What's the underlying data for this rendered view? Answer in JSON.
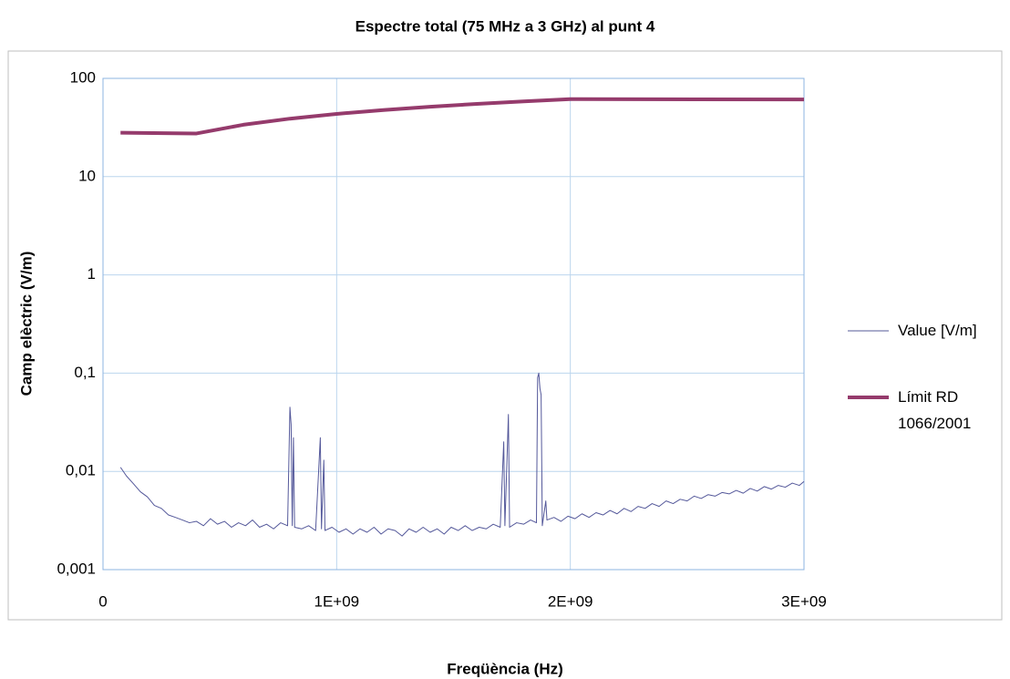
{
  "chart_data": {
    "type": "line",
    "title": "Espectre total (75 MHz a 3 GHz) al punt 4",
    "x_label": "Freqüència (Hz)",
    "y_label": "Camp elèctric (V/m)",
    "ylog": true,
    "grid": true,
    "legend": "right",
    "xlim": [
      0,
      3000000000
    ],
    "xticks": [
      0,
      {
        "value": 1000000000,
        "label": "1E+09"
      },
      {
        "value": 2000000000,
        "label": "2E+09"
      },
      {
        "value": 3000000000,
        "label": "3E+09"
      }
    ],
    "ylim": [
      0.001,
      100
    ],
    "yticks": [
      {
        "value": 0.001,
        "label": "0,001"
      },
      {
        "value": 0.01,
        "label": "0,01"
      },
      {
        "value": 0.1,
        "label": "0,1"
      },
      1,
      10,
      100
    ],
    "series": [
      {
        "name": "Value [V/m]",
        "color": "#54589a",
        "x": [
          75000000,
          100000000,
          130000000,
          160000000,
          190000000,
          220000000,
          250000000,
          280000000,
          310000000,
          340000000,
          370000000,
          400000000,
          430000000,
          460000000,
          490000000,
          520000000,
          550000000,
          580000000,
          610000000,
          640000000,
          670000000,
          700000000,
          730000000,
          760000000,
          790000000,
          800000000,
          805000000,
          810000000,
          815000000,
          820000000,
          850000000,
          880000000,
          910000000,
          930000000,
          935000000,
          945000000,
          950000000,
          980000000,
          1010000000,
          1040000000,
          1070000000,
          1100000000,
          1130000000,
          1160000000,
          1190000000,
          1220000000,
          1250000000,
          1280000000,
          1310000000,
          1340000000,
          1370000000,
          1400000000,
          1430000000,
          1460000000,
          1490000000,
          1520000000,
          1550000000,
          1580000000,
          1610000000,
          1640000000,
          1670000000,
          1700000000,
          1715000000,
          1720000000,
          1735000000,
          1740000000,
          1770000000,
          1800000000,
          1830000000,
          1855000000,
          1860000000,
          1865000000,
          1870000000,
          1875000000,
          1880000000,
          1895000000,
          1900000000,
          1930000000,
          1960000000,
          1990000000,
          2020000000,
          2050000000,
          2080000000,
          2110000000,
          2140000000,
          2170000000,
          2200000000,
          2230000000,
          2260000000,
          2290000000,
          2320000000,
          2350000000,
          2380000000,
          2410000000,
          2440000000,
          2470000000,
          2500000000,
          2530000000,
          2560000000,
          2590000000,
          2620000000,
          2650000000,
          2680000000,
          2710000000,
          2740000000,
          2770000000,
          2800000000,
          2830000000,
          2860000000,
          2890000000,
          2920000000,
          2950000000,
          2980000000,
          3000000000
        ],
        "values": [
          0.011,
          0.009,
          0.0075,
          0.0062,
          0.0055,
          0.0045,
          0.0042,
          0.0036,
          0.0034,
          0.0032,
          0.003,
          0.0031,
          0.0028,
          0.0033,
          0.0029,
          0.0031,
          0.0027,
          0.003,
          0.0028,
          0.0032,
          0.0027,
          0.0029,
          0.0026,
          0.003,
          0.0028,
          0.045,
          0.03,
          0.0028,
          0.022,
          0.0027,
          0.0026,
          0.0028,
          0.0025,
          0.022,
          0.0026,
          0.013,
          0.0025,
          0.0027,
          0.0024,
          0.0026,
          0.0023,
          0.0026,
          0.0024,
          0.0027,
          0.0023,
          0.0026,
          0.0025,
          0.0022,
          0.0026,
          0.0024,
          0.0027,
          0.0024,
          0.0026,
          0.0023,
          0.0027,
          0.0025,
          0.0028,
          0.0025,
          0.0027,
          0.0026,
          0.0029,
          0.0027,
          0.02,
          0.0028,
          0.038,
          0.0027,
          0.003,
          0.0029,
          0.0032,
          0.003,
          0.09,
          0.1,
          0.07,
          0.06,
          0.0028,
          0.005,
          0.0032,
          0.0034,
          0.0031,
          0.0035,
          0.0033,
          0.0037,
          0.0034,
          0.0038,
          0.0036,
          0.004,
          0.0037,
          0.0042,
          0.0039,
          0.0044,
          0.0042,
          0.0047,
          0.0044,
          0.005,
          0.0047,
          0.0052,
          0.005,
          0.0056,
          0.0053,
          0.0058,
          0.0056,
          0.0061,
          0.0059,
          0.0064,
          0.006,
          0.0067,
          0.0063,
          0.007,
          0.0066,
          0.0072,
          0.0069,
          0.0076,
          0.0072,
          0.0079
        ]
      },
      {
        "name": "Límit RD 1066/2001",
        "color": "#953b6c",
        "x": [
          75000000,
          400000000,
          600000000,
          800000000,
          1000000000,
          1200000000,
          1400000000,
          1600000000,
          1800000000,
          2000000000,
          3000000000
        ],
        "values": [
          28,
          27.5,
          33.7,
          38.9,
          43.5,
          47.6,
          51.4,
          55,
          58.3,
          61.5,
          61
        ]
      }
    ]
  }
}
